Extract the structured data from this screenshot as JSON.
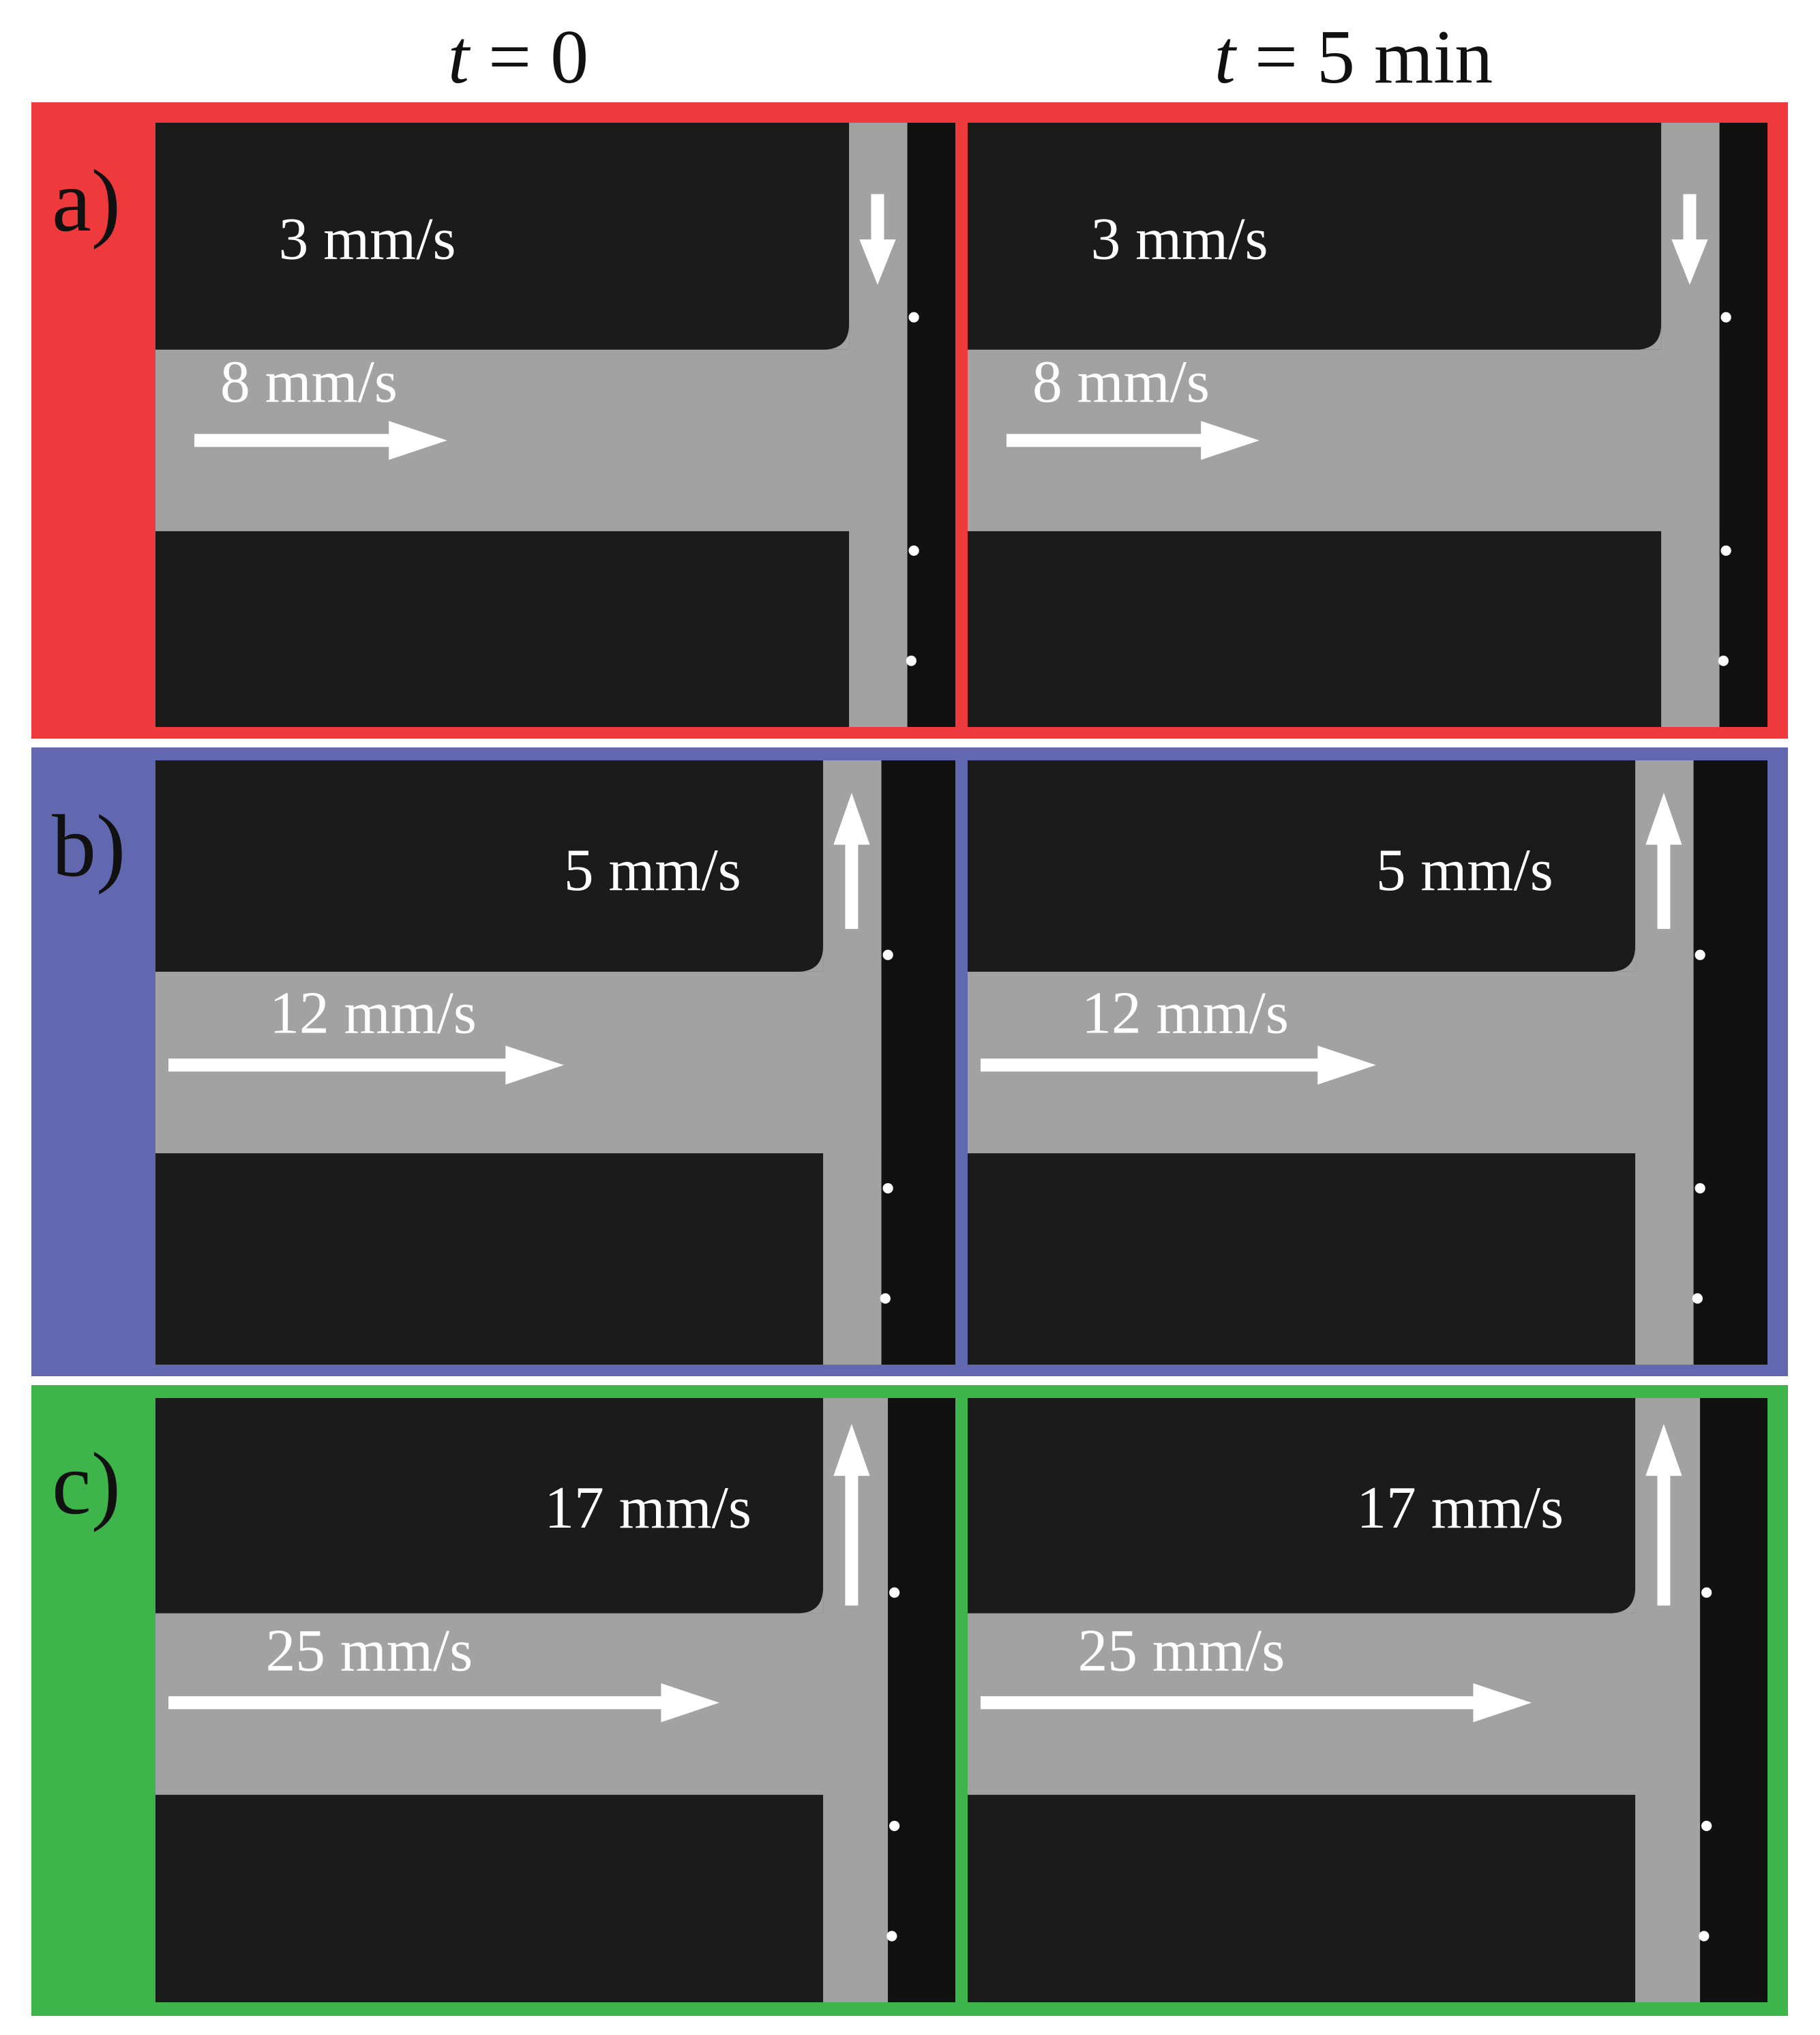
{
  "columns": [
    {
      "var": "t",
      "rest": " = 0"
    },
    {
      "var": "t",
      "rest": " = 5 min"
    }
  ],
  "colors": {
    "a": "#ee3a3c",
    "b": "#6168b0",
    "c": "#3db54a",
    "channel": "#a2a2a2",
    "wall": "#1b1b1b"
  },
  "rows": [
    {
      "label": "a)",
      "color_key": "a",
      "vertical_speed": "3 mm/s",
      "horizontal_speed": "8 mm/s",
      "vertical_arrow": "down"
    },
    {
      "label": "b)",
      "color_key": "b",
      "vertical_speed": "5 mm/s",
      "horizontal_speed": "12 mm/s",
      "vertical_arrow": "up"
    },
    {
      "label": "c)",
      "color_key": "c",
      "vertical_speed": "17 mm/s",
      "horizontal_speed": "25 mm/s",
      "vertical_arrow": "up"
    }
  ]
}
